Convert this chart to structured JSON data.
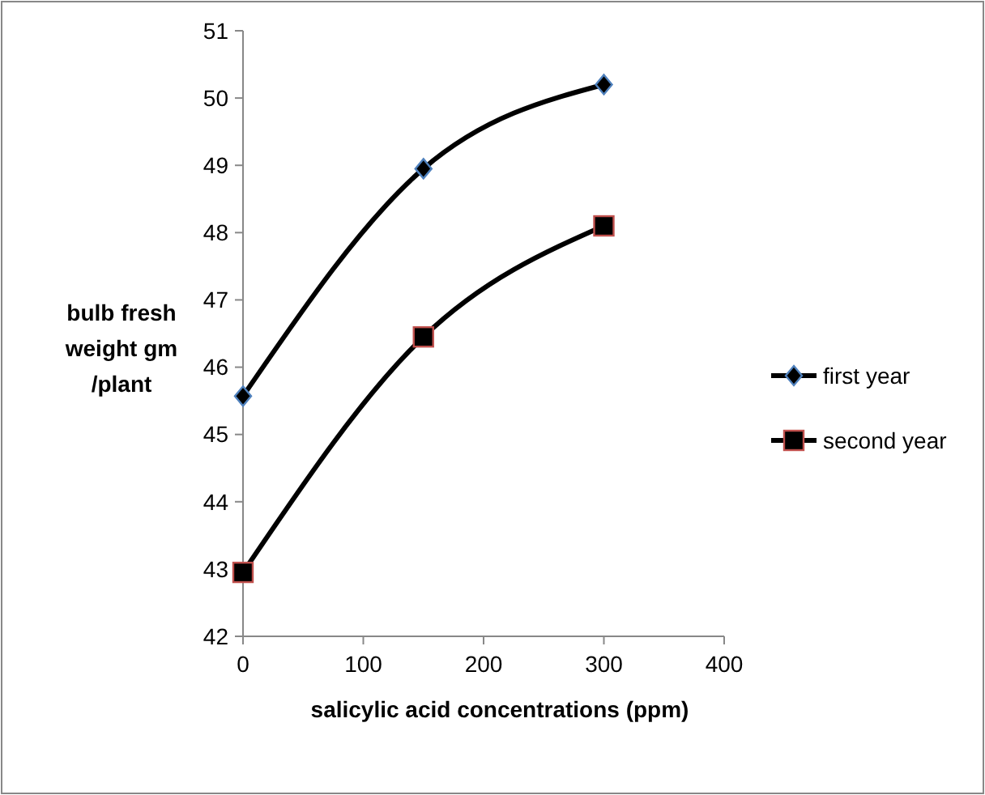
{
  "chart_data": {
    "type": "line",
    "xlabel": "salicylic acid concentrations (ppm)",
    "ylabel": "bulb fresh\nweight gm\n/plant",
    "x": [
      0,
      150,
      300
    ],
    "xlim": [
      0,
      400
    ],
    "xticks": [
      0,
      100,
      200,
      300,
      400
    ],
    "ylim": [
      42,
      51
    ],
    "yticks": [
      42,
      43,
      44,
      45,
      46,
      47,
      48,
      49,
      50,
      51
    ],
    "grid": false,
    "legend": "right",
    "line_style": "solid",
    "series": [
      {
        "name": "first year",
        "color": "#000000",
        "marker": "diamond",
        "values": [
          45.57,
          48.95,
          50.2
        ]
      },
      {
        "name": "second year",
        "color": "#000000",
        "marker": "square",
        "values": [
          42.95,
          46.45,
          48.1
        ]
      }
    ]
  }
}
